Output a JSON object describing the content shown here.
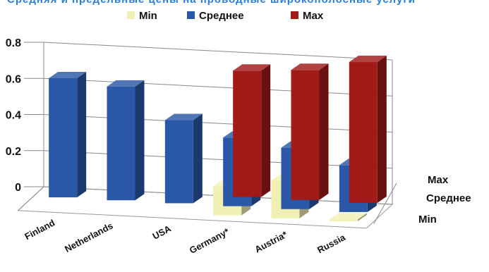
{
  "cropped_top_text": "Средняя и предельные цены на проводные широкополосные услуги",
  "chart_data": {
    "type": "bar",
    "variant": "3d-grouped",
    "title": "",
    "xlabel": "",
    "ylabel": "",
    "categories": [
      "Finland",
      "Netherlands",
      "USA",
      "Germany*",
      "Austria*",
      "Russia"
    ],
    "series": [
      {
        "name": "Min",
        "color": "#f1f0b4",
        "values": [
          null,
          null,
          null,
          0.16,
          0.21,
          0.01
        ]
      },
      {
        "name": "Среднее",
        "color": "#2a58a6",
        "values": [
          0.66,
          0.63,
          0.46,
          0.38,
          0.34,
          0.26
        ]
      },
      {
        "name": "Max",
        "color": "#a01a18",
        "values": [
          null,
          null,
          null,
          0.7,
          0.72,
          0.78
        ]
      }
    ],
    "depth_labels": [
      "Max",
      "Среднее",
      "Min"
    ],
    "ylim": [
      0,
      0.8
    ],
    "yticks": [
      "0",
      "0.2",
      "0.4",
      "0.6",
      "0.8"
    ],
    "grid": true,
    "legend_position": "top"
  }
}
